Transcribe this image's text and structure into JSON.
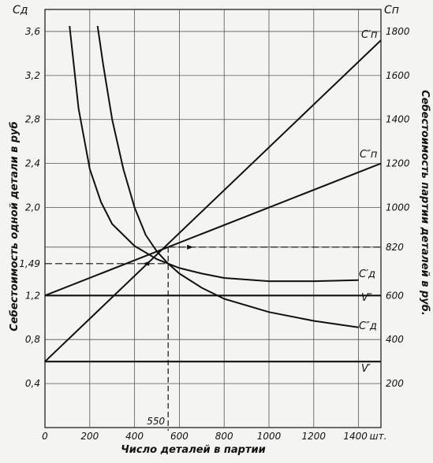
{
  "chart_data": {
    "type": "line",
    "title": "",
    "xlabel": "Число деталей в партии",
    "x_unit_label": "шт.",
    "y_left_label": "Себестоимость одной детали в руб",
    "y_left_symbol": "C_д",
    "y_right_label": "Себестоимость партии деталей в руб.",
    "y_right_symbol": "C_п",
    "xlim": [
      0,
      1500
    ],
    "y_left_lim": [
      0,
      3.8
    ],
    "y_right_lim": [
      0,
      1900
    ],
    "x_ticks": [
      "0",
      "200",
      "400",
      "600",
      "800",
      "1000",
      "1200",
      "1400"
    ],
    "y_left_ticks": [
      "0,4",
      "0,8",
      "1,2",
      "1,49",
      "2,0",
      "2,4",
      "2,8",
      "3,2",
      "3,6"
    ],
    "y_right_ticks": [
      "200",
      "400",
      "600",
      "820",
      "1000",
      "1200",
      "1400",
      "1600",
      "1800"
    ],
    "grid": true,
    "annotations": [
      {
        "text": "550",
        "x": 550,
        "note": "x of intersection"
      },
      {
        "text": "1,49",
        "y_left": 1.49
      },
      {
        "text": "820",
        "y_right": 820
      }
    ],
    "series": [
      {
        "name": "C'_п",
        "axis": "right",
        "x": [
          0,
          1500
        ],
        "y": [
          300,
          1760
        ]
      },
      {
        "name": "C''_п",
        "axis": "right",
        "x": [
          0,
          1500
        ],
        "y": [
          600,
          1200
        ]
      },
      {
        "name": "C'_д",
        "axis": "left",
        "x": [
          110,
          150,
          200,
          250,
          300,
          400,
          500,
          550,
          600,
          700,
          800,
          1000,
          1200,
          1400
        ],
        "y": [
          3.65,
          2.9,
          2.35,
          2.05,
          1.85,
          1.65,
          1.53,
          1.49,
          1.45,
          1.4,
          1.36,
          1.33,
          1.33,
          1.34
        ]
      },
      {
        "name": "C''_д",
        "axis": "left",
        "x": [
          235,
          260,
          300,
          350,
          400,
          450,
          500,
          550,
          600,
          700,
          800,
          1000,
          1200,
          1400
        ],
        "y": [
          3.65,
          3.3,
          2.8,
          2.35,
          2.0,
          1.75,
          1.6,
          1.49,
          1.4,
          1.27,
          1.17,
          1.05,
          0.97,
          0.91
        ]
      },
      {
        "name": "V'",
        "axis": "right",
        "x": [
          0,
          1500
        ],
        "y": [
          300,
          300
        ]
      },
      {
        "name": "V''",
        "axis": "right",
        "x": [
          0,
          1500
        ],
        "y": [
          600,
          600
        ]
      }
    ]
  }
}
